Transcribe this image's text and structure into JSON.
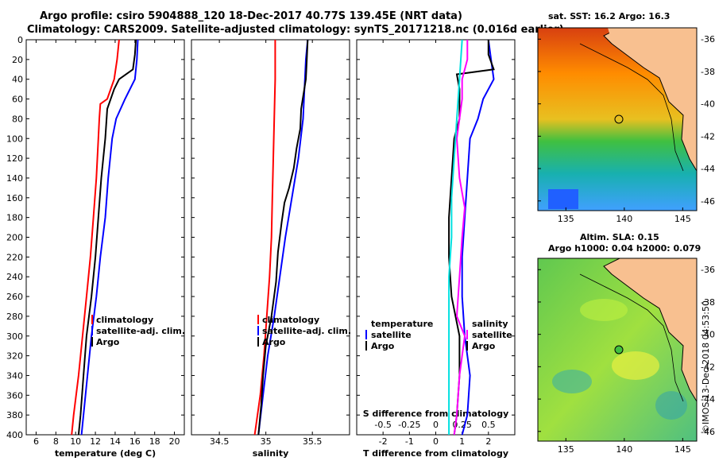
{
  "title": {
    "line1": "Argo profile: csiro 5904888_120 18-Dec-2017 40.77S 139.45E (NRT data)",
    "line2": "Climatology: CARS2009. Satellite-adjusted climatology: synTS_20171218.nc (0.016d earlier)"
  },
  "colors": {
    "climatology": "#ff0000",
    "satellite": "#0000ff",
    "argo": "#000000",
    "salinity_diff": "#ff00ff",
    "temp_diff_cyan": "#00e0e0"
  },
  "depth_ticks": [
    "0",
    "20",
    "40",
    "60",
    "80",
    "100",
    "120",
    "140",
    "160",
    "180",
    "200",
    "220",
    "240",
    "260",
    "280",
    "300",
    "320",
    "340",
    "360",
    "380",
    "400"
  ],
  "chart_data": [
    {
      "type": "line",
      "name": "temperature",
      "xlabel": "temperature (deg C)",
      "ylabel": "depth",
      "xlim": [
        5,
        21
      ],
      "ylim": [
        400,
        0
      ],
      "xticks": [
        "6",
        "8",
        "10",
        "12",
        "14",
        "16",
        "18",
        "20"
      ],
      "legend": [
        "climatology",
        "satellite-adj. clim.",
        "Argo"
      ],
      "series": [
        {
          "name": "climatology",
          "color": "#ff0000",
          "points": [
            [
              14.4,
              0
            ],
            [
              14.2,
              20
            ],
            [
              13.9,
              40
            ],
            [
              13.2,
              60
            ],
            [
              12.5,
              65
            ],
            [
              12.4,
              80
            ],
            [
              12.3,
              100
            ],
            [
              12.1,
              140
            ],
            [
              11.8,
              180
            ],
            [
              11.5,
              220
            ],
            [
              11.1,
              260
            ],
            [
              10.7,
              300
            ],
            [
              10.3,
              340
            ],
            [
              9.8,
              380
            ],
            [
              9.6,
              400
            ]
          ]
        },
        {
          "name": "satellite-adj. clim.",
          "color": "#0000ff",
          "points": [
            [
              16.3,
              0
            ],
            [
              16.2,
              20
            ],
            [
              16.0,
              40
            ],
            [
              15.0,
              60
            ],
            [
              14.1,
              80
            ],
            [
              13.7,
              100
            ],
            [
              13.3,
              140
            ],
            [
              13.0,
              180
            ],
            [
              12.5,
              220
            ],
            [
              12.1,
              260
            ],
            [
              11.6,
              300
            ],
            [
              11.2,
              340
            ],
            [
              10.8,
              380
            ],
            [
              10.6,
              400
            ]
          ]
        },
        {
          "name": "Argo",
          "color": "#000000",
          "points": [
            [
              16.1,
              0
            ],
            [
              16.0,
              15
            ],
            [
              15.8,
              30
            ],
            [
              14.4,
              40
            ],
            [
              13.9,
              50
            ],
            [
              13.2,
              70
            ],
            [
              13.0,
              100
            ],
            [
              12.6,
              140
            ],
            [
              12.3,
              180
            ],
            [
              12.0,
              220
            ],
            [
              11.6,
              260
            ],
            [
              11.1,
              300
            ],
            [
              10.8,
              340
            ],
            [
              10.5,
              380
            ],
            [
              10.3,
              400
            ]
          ]
        }
      ]
    },
    {
      "type": "line",
      "name": "salinity",
      "xlabel": "salinity",
      "ylabel": "depth",
      "xlim": [
        34.2,
        35.9
      ],
      "ylim": [
        400,
        0
      ],
      "xticks": [
        "34.5",
        "35",
        "35.5"
      ],
      "legend": [
        "climatology",
        "satellite-adj. clim.",
        "Argo"
      ],
      "series": [
        {
          "name": "climatology",
          "color": "#ff0000",
          "points": [
            [
              35.1,
              0
            ],
            [
              35.1,
              40
            ],
            [
              35.09,
              80
            ],
            [
              35.08,
              120
            ],
            [
              35.07,
              160
            ],
            [
              35.06,
              200
            ],
            [
              35.04,
              240
            ],
            [
              35.01,
              280
            ],
            [
              34.98,
              320
            ],
            [
              34.94,
              360
            ],
            [
              34.88,
              400
            ]
          ]
        },
        {
          "name": "satellite-adj. clim.",
          "color": "#0000ff",
          "points": [
            [
              35.45,
              0
            ],
            [
              35.43,
              20
            ],
            [
              35.42,
              40
            ],
            [
              35.4,
              80
            ],
            [
              35.35,
              120
            ],
            [
              35.28,
              160
            ],
            [
              35.21,
              200
            ],
            [
              35.15,
              240
            ],
            [
              35.09,
              280
            ],
            [
              35.02,
              320
            ],
            [
              34.97,
              360
            ],
            [
              34.92,
              400
            ]
          ]
        },
        {
          "name": "Argo",
          "color": "#000000",
          "points": [
            [
              35.45,
              0
            ],
            [
              35.44,
              20
            ],
            [
              35.43,
              40
            ],
            [
              35.38,
              70
            ],
            [
              35.37,
              90
            ],
            [
              35.33,
              110
            ],
            [
              35.3,
              130
            ],
            [
              35.25,
              150
            ],
            [
              35.2,
              165
            ],
            [
              35.17,
              185
            ],
            [
              35.13,
              215
            ],
            [
              35.11,
              245
            ],
            [
              35.06,
              280
            ],
            [
              35.0,
              310
            ],
            [
              34.97,
              340
            ],
            [
              34.95,
              370
            ],
            [
              34.92,
              400
            ]
          ]
        }
      ]
    },
    {
      "type": "line",
      "name": "difference",
      "xlabel": "T difference from climatology",
      "x2label": "S difference from climatology",
      "ylabel": "depth",
      "xlim": [
        -3,
        3
      ],
      "ylim": [
        400,
        0
      ],
      "xticks": [
        "-2",
        "-1",
        "0",
        "1",
        "2"
      ],
      "x2ticks": [
        "-0.5",
        "-0.25",
        "0",
        "0.25",
        "0.5"
      ],
      "legend_left_title": "temperature",
      "legend_right_title": "salinity",
      "legend_left": [
        "satellite",
        "Argo"
      ],
      "legend_right": [
        "satellite",
        "Argo"
      ],
      "series": [
        {
          "name": "T satellite",
          "color": "#0000ff",
          "points": [
            [
              2.0,
              0
            ],
            [
              2.1,
              20
            ],
            [
              2.2,
              40
            ],
            [
              1.8,
              60
            ],
            [
              1.6,
              80
            ],
            [
              1.3,
              100
            ],
            [
              1.2,
              140
            ],
            [
              1.1,
              180
            ],
            [
              1.0,
              220
            ],
            [
              1.0,
              260
            ],
            [
              1.1,
              300
            ],
            [
              1.3,
              340
            ],
            [
              1.2,
              380
            ],
            [
              1.0,
              400
            ]
          ]
        },
        {
          "name": "T Argo",
          "color": "#000000",
          "points": [
            [
              2.0,
              0
            ],
            [
              2.0,
              15
            ],
            [
              2.2,
              30
            ],
            [
              0.8,
              35
            ],
            [
              0.9,
              50
            ],
            [
              0.9,
              80
            ],
            [
              0.7,
              100
            ],
            [
              0.6,
              140
            ],
            [
              0.5,
              180
            ],
            [
              0.5,
              220
            ],
            [
              0.6,
              260
            ],
            [
              0.9,
              300
            ],
            [
              0.9,
              340
            ],
            [
              0.8,
              380
            ],
            [
              0.7,
              400
            ]
          ]
        },
        {
          "name": "S satellite",
          "color": "#ff00ff",
          "points": [
            [
              1.2,
              0
            ],
            [
              1.2,
              20
            ],
            [
              1.0,
              40
            ],
            [
              1.0,
              60
            ],
            [
              0.9,
              80
            ],
            [
              0.8,
              100
            ],
            [
              0.9,
              140
            ],
            [
              1.1,
              170
            ],
            [
              1.0,
              200
            ],
            [
              0.9,
              240
            ],
            [
              0.8,
              280
            ],
            [
              1.1,
              300
            ],
            [
              0.9,
              340
            ],
            [
              0.8,
              380
            ],
            [
              0.7,
              400
            ]
          ]
        },
        {
          "name": "T cyan",
          "color": "#00e0e0",
          "points": [
            [
              1.0,
              0
            ],
            [
              0.9,
              40
            ],
            [
              0.8,
              80
            ],
            [
              0.7,
              120
            ],
            [
              0.6,
              160
            ],
            [
              0.6,
              200
            ],
            [
              0.5,
              240
            ],
            [
              0.5,
              280
            ],
            [
              0.5,
              320
            ],
            [
              0.5,
              360
            ],
            [
              0.5,
              400
            ]
          ]
        }
      ]
    }
  ],
  "maps": {
    "sst": {
      "title": "sat. SST: 16.2 Argo: 16.3",
      "yticks": [
        "-36",
        "-38",
        "-40",
        "-42",
        "-44",
        "-46"
      ],
      "xticks": [
        "135",
        "140",
        "145"
      ],
      "float_lon": 139.45,
      "float_lat": -40.77
    },
    "sla": {
      "title1": "Altim. SLA: 0.15",
      "title2": "Argo h1000: 0.04 h2000: 0.079",
      "yticks": [
        "-36",
        "-38",
        "-40",
        "-42",
        "-44",
        "-46"
      ],
      "xticks": [
        "135",
        "140",
        "145"
      ],
      "float_lon": 139.45,
      "float_lat": -40.77
    }
  },
  "credit": "©IMOS 13-Dec-2018 04:53:50"
}
